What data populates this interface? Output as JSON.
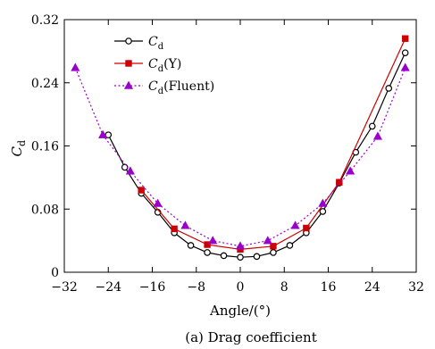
{
  "chart_data": {
    "type": "line",
    "caption": "(a) Drag coefficient",
    "xlabel": "Angle/(°)",
    "ylabel": {
      "main": "C",
      "sub": "d"
    },
    "xlim": [
      -32,
      32
    ],
    "ylim": [
      0,
      0.32
    ],
    "xticks": [
      -32,
      -24,
      -16,
      -8,
      0,
      8,
      16,
      24,
      32
    ],
    "xtick_labels": [
      "−32",
      "−24",
      "−16",
      "−8",
      "0",
      "8",
      "16",
      "24",
      "32"
    ],
    "yticks": [
      0,
      0.08,
      0.16,
      0.24,
      0.32
    ],
    "ytick_labels": [
      "0",
      "0.08",
      "0.16",
      "0.24",
      "0.32"
    ],
    "grid": false,
    "legend_position": "top-left",
    "series": [
      {
        "name": "Cd",
        "legend": {
          "main": "C",
          "sub": "d",
          "suffix": ""
        },
        "color": "#000000",
        "line_style": "solid",
        "marker": "circle-open",
        "x": [
          -24,
          -21,
          -18,
          -15,
          -12,
          -9,
          -6,
          -3,
          0,
          3,
          6,
          9,
          12,
          15,
          18,
          21,
          24,
          27,
          30
        ],
        "y": [
          0.174,
          0.133,
          0.1,
          0.076,
          0.05,
          0.034,
          0.025,
          0.021,
          0.019,
          0.02,
          0.025,
          0.034,
          0.05,
          0.077,
          0.113,
          0.152,
          0.185,
          0.233,
          0.278
        ]
      },
      {
        "name": "Cd(Y)",
        "legend": {
          "main": "C",
          "sub": "d",
          "suffix": "(Y)"
        },
        "color": "#cc0000",
        "line_style": "solid",
        "marker": "square-filled",
        "x": [
          -18,
          -12,
          -6,
          0,
          6,
          12,
          18,
          30
        ],
        "y": [
          0.104,
          0.055,
          0.035,
          0.029,
          0.033,
          0.056,
          0.114,
          0.296
        ]
      },
      {
        "name": "Cd(Fluent)",
        "legend": {
          "main": "C",
          "sub": "d",
          "suffix": "(Fluent)"
        },
        "color": "#9900cc",
        "line_style": "dotted",
        "marker": "triangle-filled",
        "x": [
          -30,
          -25,
          -20,
          -15,
          -10,
          -5,
          0,
          5,
          10,
          15,
          20,
          25,
          30
        ],
        "y": [
          0.259,
          0.174,
          0.128,
          0.087,
          0.059,
          0.04,
          0.033,
          0.04,
          0.059,
          0.087,
          0.128,
          0.172,
          0.259
        ]
      }
    ]
  }
}
